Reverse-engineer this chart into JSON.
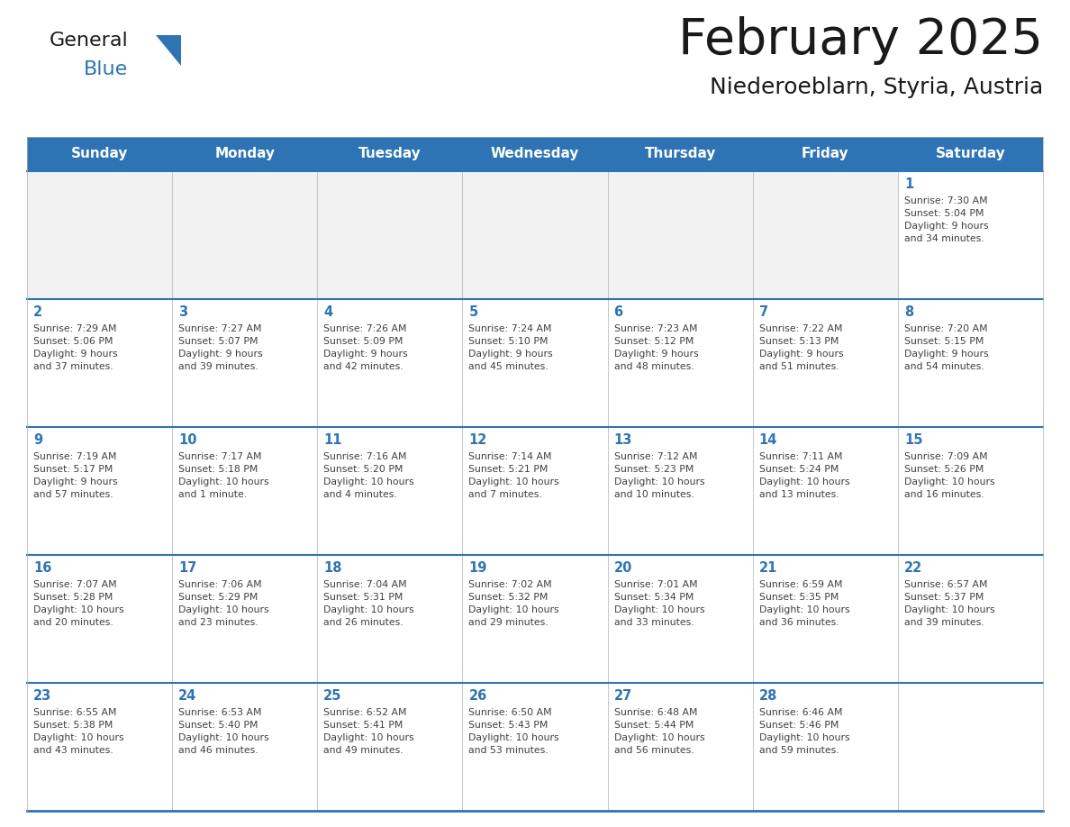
{
  "title": "February 2025",
  "subtitle": "Niederoeblarn, Styria, Austria",
  "days_of_week": [
    "Sunday",
    "Monday",
    "Tuesday",
    "Wednesday",
    "Thursday",
    "Friday",
    "Saturday"
  ],
  "header_bg": "#2e74b5",
  "header_text_color": "#ffffff",
  "cell_bg": "#ffffff",
  "first_row_empty_bg": "#f2f2f2",
  "divider_color": "#2e74b5",
  "day_num_color": "#2e74b5",
  "text_color": "#404040",
  "title_color": "#1a1a1a",
  "subtitle_color": "#1a1a1a",
  "border_color": "#b0b0b0",
  "weeks": [
    [
      {
        "day": null,
        "info": null
      },
      {
        "day": null,
        "info": null
      },
      {
        "day": null,
        "info": null
      },
      {
        "day": null,
        "info": null
      },
      {
        "day": null,
        "info": null
      },
      {
        "day": null,
        "info": null
      },
      {
        "day": 1,
        "info": "Sunrise: 7:30 AM\nSunset: 5:04 PM\nDaylight: 9 hours\nand 34 minutes."
      }
    ],
    [
      {
        "day": 2,
        "info": "Sunrise: 7:29 AM\nSunset: 5:06 PM\nDaylight: 9 hours\nand 37 minutes."
      },
      {
        "day": 3,
        "info": "Sunrise: 7:27 AM\nSunset: 5:07 PM\nDaylight: 9 hours\nand 39 minutes."
      },
      {
        "day": 4,
        "info": "Sunrise: 7:26 AM\nSunset: 5:09 PM\nDaylight: 9 hours\nand 42 minutes."
      },
      {
        "day": 5,
        "info": "Sunrise: 7:24 AM\nSunset: 5:10 PM\nDaylight: 9 hours\nand 45 minutes."
      },
      {
        "day": 6,
        "info": "Sunrise: 7:23 AM\nSunset: 5:12 PM\nDaylight: 9 hours\nand 48 minutes."
      },
      {
        "day": 7,
        "info": "Sunrise: 7:22 AM\nSunset: 5:13 PM\nDaylight: 9 hours\nand 51 minutes."
      },
      {
        "day": 8,
        "info": "Sunrise: 7:20 AM\nSunset: 5:15 PM\nDaylight: 9 hours\nand 54 minutes."
      }
    ],
    [
      {
        "day": 9,
        "info": "Sunrise: 7:19 AM\nSunset: 5:17 PM\nDaylight: 9 hours\nand 57 minutes."
      },
      {
        "day": 10,
        "info": "Sunrise: 7:17 AM\nSunset: 5:18 PM\nDaylight: 10 hours\nand 1 minute."
      },
      {
        "day": 11,
        "info": "Sunrise: 7:16 AM\nSunset: 5:20 PM\nDaylight: 10 hours\nand 4 minutes."
      },
      {
        "day": 12,
        "info": "Sunrise: 7:14 AM\nSunset: 5:21 PM\nDaylight: 10 hours\nand 7 minutes."
      },
      {
        "day": 13,
        "info": "Sunrise: 7:12 AM\nSunset: 5:23 PM\nDaylight: 10 hours\nand 10 minutes."
      },
      {
        "day": 14,
        "info": "Sunrise: 7:11 AM\nSunset: 5:24 PM\nDaylight: 10 hours\nand 13 minutes."
      },
      {
        "day": 15,
        "info": "Sunrise: 7:09 AM\nSunset: 5:26 PM\nDaylight: 10 hours\nand 16 minutes."
      }
    ],
    [
      {
        "day": 16,
        "info": "Sunrise: 7:07 AM\nSunset: 5:28 PM\nDaylight: 10 hours\nand 20 minutes."
      },
      {
        "day": 17,
        "info": "Sunrise: 7:06 AM\nSunset: 5:29 PM\nDaylight: 10 hours\nand 23 minutes."
      },
      {
        "day": 18,
        "info": "Sunrise: 7:04 AM\nSunset: 5:31 PM\nDaylight: 10 hours\nand 26 minutes."
      },
      {
        "day": 19,
        "info": "Sunrise: 7:02 AM\nSunset: 5:32 PM\nDaylight: 10 hours\nand 29 minutes."
      },
      {
        "day": 20,
        "info": "Sunrise: 7:01 AM\nSunset: 5:34 PM\nDaylight: 10 hours\nand 33 minutes."
      },
      {
        "day": 21,
        "info": "Sunrise: 6:59 AM\nSunset: 5:35 PM\nDaylight: 10 hours\nand 36 minutes."
      },
      {
        "day": 22,
        "info": "Sunrise: 6:57 AM\nSunset: 5:37 PM\nDaylight: 10 hours\nand 39 minutes."
      }
    ],
    [
      {
        "day": 23,
        "info": "Sunrise: 6:55 AM\nSunset: 5:38 PM\nDaylight: 10 hours\nand 43 minutes."
      },
      {
        "day": 24,
        "info": "Sunrise: 6:53 AM\nSunset: 5:40 PM\nDaylight: 10 hours\nand 46 minutes."
      },
      {
        "day": 25,
        "info": "Sunrise: 6:52 AM\nSunset: 5:41 PM\nDaylight: 10 hours\nand 49 minutes."
      },
      {
        "day": 26,
        "info": "Sunrise: 6:50 AM\nSunset: 5:43 PM\nDaylight: 10 hours\nand 53 minutes."
      },
      {
        "day": 27,
        "info": "Sunrise: 6:48 AM\nSunset: 5:44 PM\nDaylight: 10 hours\nand 56 minutes."
      },
      {
        "day": 28,
        "info": "Sunrise: 6:46 AM\nSunset: 5:46 PM\nDaylight: 10 hours\nand 59 minutes."
      },
      {
        "day": null,
        "info": null
      }
    ]
  ],
  "logo_text_general": "General",
  "logo_text_blue": "Blue",
  "logo_color_general": "#1a1a1a",
  "logo_color_blue": "#2e74b5",
  "logo_triangle_color": "#2e74b5",
  "fig_width": 11.88,
  "fig_height": 9.18,
  "dpi": 100
}
